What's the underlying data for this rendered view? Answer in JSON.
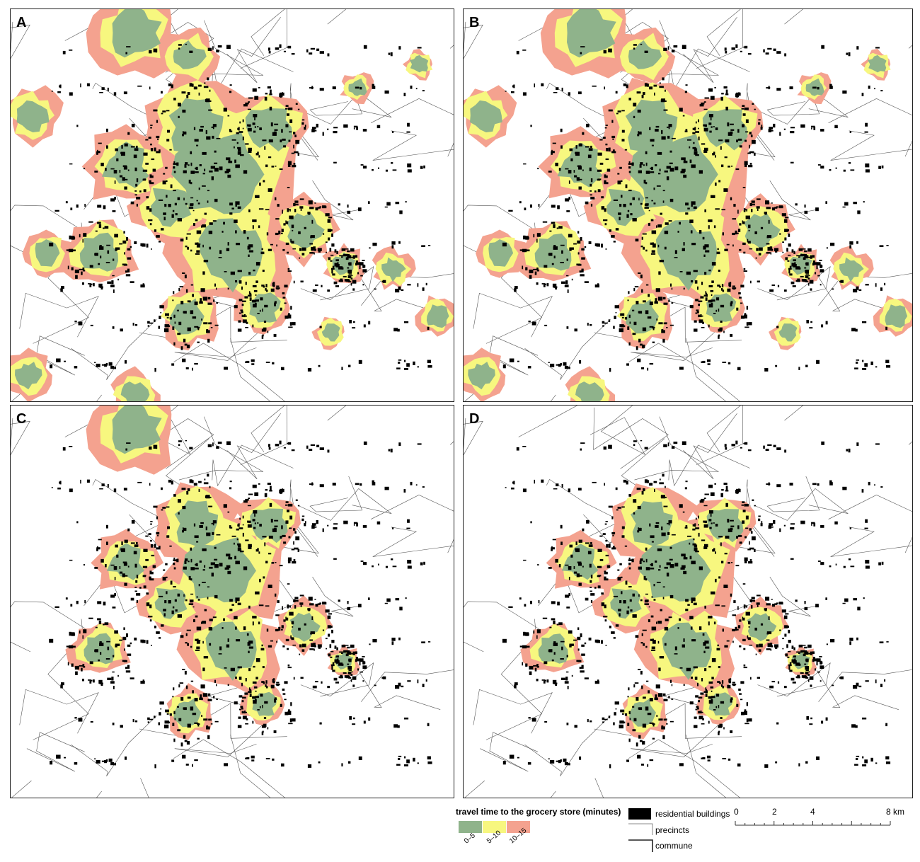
{
  "panels": [
    {
      "label": "A",
      "variant": 1.0
    },
    {
      "label": "B",
      "variant": 0.9
    },
    {
      "label": "C",
      "variant": 0.55
    },
    {
      "label": "D",
      "variant": 0.5
    }
  ],
  "legend": {
    "title": "travel time to the grocery store (minutes)",
    "classes": [
      {
        "label": "0–5",
        "color": "#8fb38b"
      },
      {
        "label": "5–10",
        "color": "#f7f77f"
      },
      {
        "label": "10–15",
        "color": "#f4a28f"
      }
    ],
    "residential_label": "residential buildings",
    "residential_color": "#000000",
    "precincts_label": "precincts",
    "commune_label": "commune"
  },
  "scale_bar": {
    "ticks": [
      "0",
      "2",
      "4",
      "8 km"
    ]
  }
}
